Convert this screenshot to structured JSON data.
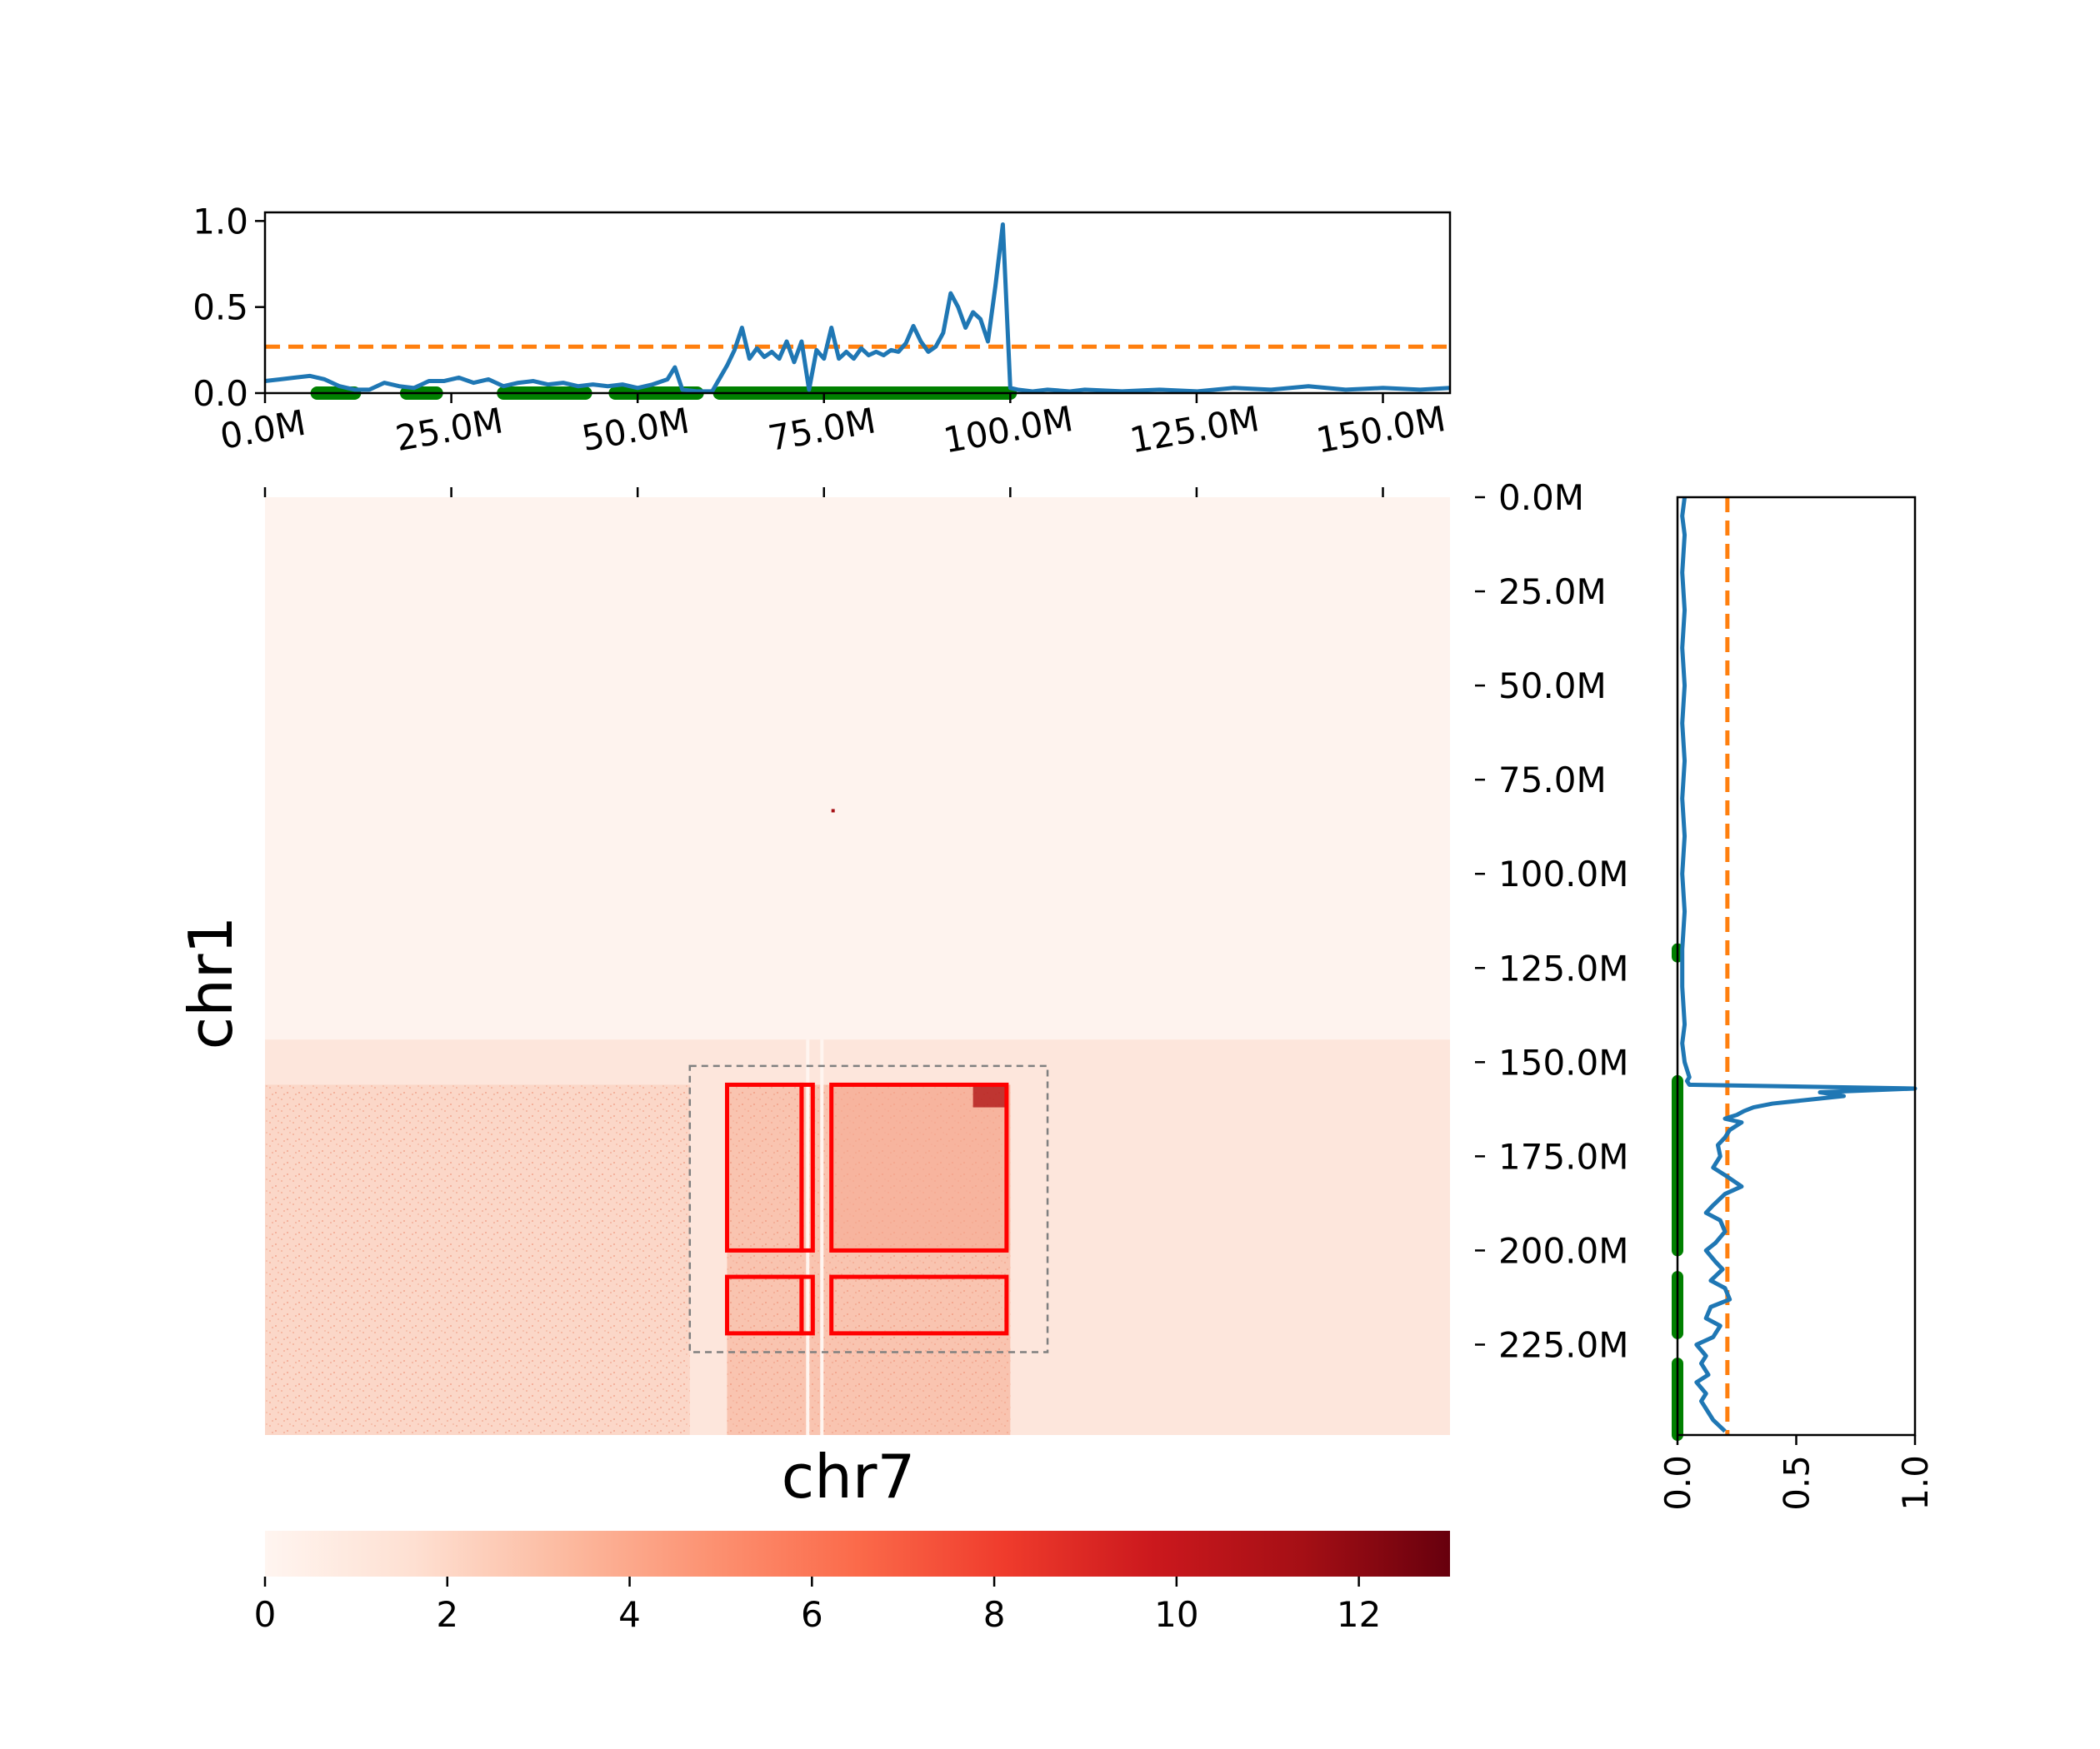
{
  "colors": {
    "profile_line": "#1f77b4",
    "threshold_line": "#ff7f0e",
    "segment_marker": "#008000",
    "box_outline": "#ff0000",
    "region_outline": "#808080",
    "colormap": [
      "#fff5f0",
      "#fee0d2",
      "#fcbba1",
      "#fc9272",
      "#fb6a4a",
      "#ef3b2c",
      "#cb181d",
      "#a50f15",
      "#67000d"
    ]
  },
  "chart_data": [
    {
      "id": "top_profile",
      "type": "line",
      "chromosome": "chr7",
      "xlim": [
        0,
        159
      ],
      "ylim": [
        0,
        1.05
      ],
      "yticks": [
        0.0,
        0.5,
        1.0
      ],
      "ytick_labels": [
        "0.0",
        "0.5",
        "1.0"
      ],
      "xticks": [
        0,
        25,
        50,
        75,
        100,
        125,
        150
      ],
      "xtick_labels": [
        "0.0M",
        "25.0M",
        "50.0M",
        "75.0M",
        "100.0M",
        "125.0M",
        "150.0M"
      ],
      "threshold": 0.27,
      "x": [
        0,
        2,
        4,
        6,
        8,
        10,
        12,
        14,
        16,
        18,
        20,
        22,
        24,
        26,
        28,
        30,
        32,
        34,
        36,
        38,
        40,
        42,
        44,
        46,
        48,
        50,
        52,
        54,
        55,
        56,
        58,
        60,
        62,
        63,
        64,
        65,
        66,
        67,
        68,
        69,
        70,
        71,
        72,
        73,
        74,
        75,
        76,
        77,
        78,
        79,
        80,
        81,
        82,
        83,
        84,
        85,
        86,
        87,
        88,
        89,
        90,
        91,
        92,
        93,
        94,
        95,
        96,
        97,
        98,
        99,
        100,
        101,
        103,
        105,
        108,
        110,
        115,
        120,
        125,
        130,
        135,
        140,
        145,
        150,
        155,
        159
      ],
      "y": [
        0.07,
        0.08,
        0.09,
        0.1,
        0.08,
        0.04,
        0.02,
        0.02,
        0.06,
        0.04,
        0.03,
        0.07,
        0.07,
        0.09,
        0.06,
        0.08,
        0.04,
        0.06,
        0.07,
        0.05,
        0.06,
        0.04,
        0.05,
        0.04,
        0.05,
        0.03,
        0.05,
        0.08,
        0.15,
        0.02,
        0.01,
        0.01,
        0.16,
        0.25,
        0.38,
        0.2,
        0.26,
        0.21,
        0.24,
        0.2,
        0.3,
        0.18,
        0.3,
        0.02,
        0.25,
        0.2,
        0.38,
        0.2,
        0.24,
        0.2,
        0.26,
        0.22,
        0.24,
        0.22,
        0.25,
        0.24,
        0.29,
        0.39,
        0.3,
        0.24,
        0.27,
        0.35,
        0.58,
        0.5,
        0.38,
        0.47,
        0.43,
        0.3,
        0.62,
        0.98,
        0.03,
        0.02,
        0.01,
        0.02,
        0.01,
        0.02,
        0.01,
        0.02,
        0.01,
        0.03,
        0.02,
        0.04,
        0.02,
        0.03,
        0.02,
        0.03
      ],
      "segments": [
        [
          7,
          12
        ],
        [
          19,
          23
        ],
        [
          32,
          43
        ],
        [
          47,
          58
        ],
        [
          61,
          100
        ]
      ]
    },
    {
      "id": "heatmap",
      "type": "heatmap",
      "xlabel": "chr7",
      "ylabel": "chr1",
      "x_range": [
        0,
        159
      ],
      "y_range": [
        0,
        249
      ],
      "y_ticks": [
        0,
        25,
        50,
        75,
        100,
        125,
        150,
        175,
        200,
        225
      ],
      "y_tick_labels": [
        "0.0M",
        "25.0M",
        "50.0M",
        "75.0M",
        "100.0M",
        "125.0M",
        "150.0M",
        "175.0M",
        "200.0M",
        "225.0M"
      ],
      "x_ticks": [
        0,
        25,
        50,
        75,
        100,
        125,
        150
      ],
      "dashed_region": {
        "x": [
          57,
          105
        ],
        "y": [
          151,
          227
        ]
      },
      "boxes": [
        {
          "x": [
            62,
            72
          ],
          "y": [
            156,
            200
          ]
        },
        {
          "x": [
            72,
            73.5
          ],
          "y": [
            156,
            200
          ]
        },
        {
          "x": [
            76,
            99.5
          ],
          "y": [
            156,
            200
          ]
        },
        {
          "x": [
            62,
            72
          ],
          "y": [
            207,
            222
          ]
        },
        {
          "x": [
            72,
            73.5
          ],
          "y": [
            207,
            222
          ]
        },
        {
          "x": [
            76,
            99.5
          ],
          "y": [
            207,
            222
          ]
        }
      ]
    },
    {
      "id": "colorbar",
      "type": "colorbar",
      "range": [
        0,
        13
      ],
      "ticks": [
        0,
        2,
        4,
        6,
        8,
        10,
        12
      ],
      "tick_labels": [
        "0",
        "2",
        "4",
        "6",
        "8",
        "10",
        "12"
      ]
    },
    {
      "id": "right_profile",
      "type": "line",
      "chromosome": "chr1",
      "xlim": [
        0,
        1.0
      ],
      "ylim": [
        0,
        249
      ],
      "xticks": [
        0.0,
        0.5,
        1.0
      ],
      "xtick_labels": [
        "0.0",
        "0.5",
        "1.0"
      ],
      "threshold": 0.21,
      "pos": [
        0,
        5,
        10,
        20,
        30,
        40,
        50,
        60,
        70,
        80,
        90,
        100,
        110,
        120,
        130,
        140,
        145,
        150,
        152,
        154,
        155,
        156,
        157,
        158,
        159,
        160,
        161,
        162,
        163,
        164,
        165,
        166,
        168,
        170,
        172,
        175,
        178,
        180,
        183,
        185,
        188,
        190,
        192,
        195,
        198,
        200,
        203,
        205,
        208,
        210,
        213,
        215,
        218,
        220,
        223,
        225,
        228,
        230,
        233,
        235,
        238,
        240,
        243,
        245,
        248
      ],
      "val": [
        0.03,
        0.02,
        0.03,
        0.02,
        0.03,
        0.02,
        0.03,
        0.02,
        0.03,
        0.02,
        0.03,
        0.02,
        0.03,
        0.02,
        0.02,
        0.03,
        0.02,
        0.03,
        0.04,
        0.05,
        0.04,
        0.05,
        1.0,
        0.6,
        0.7,
        0.55,
        0.4,
        0.32,
        0.28,
        0.25,
        0.2,
        0.27,
        0.22,
        0.2,
        0.17,
        0.18,
        0.15,
        0.2,
        0.27,
        0.2,
        0.15,
        0.12,
        0.18,
        0.2,
        0.16,
        0.12,
        0.16,
        0.19,
        0.14,
        0.2,
        0.22,
        0.14,
        0.12,
        0.18,
        0.15,
        0.08,
        0.12,
        0.1,
        0.13,
        0.08,
        0.12,
        0.1,
        0.13,
        0.15,
        0.2
      ],
      "segments": [
        [
          120,
          122
        ],
        [
          155,
          200
        ],
        [
          207,
          222
        ],
        [
          230,
          249
        ]
      ]
    }
  ]
}
